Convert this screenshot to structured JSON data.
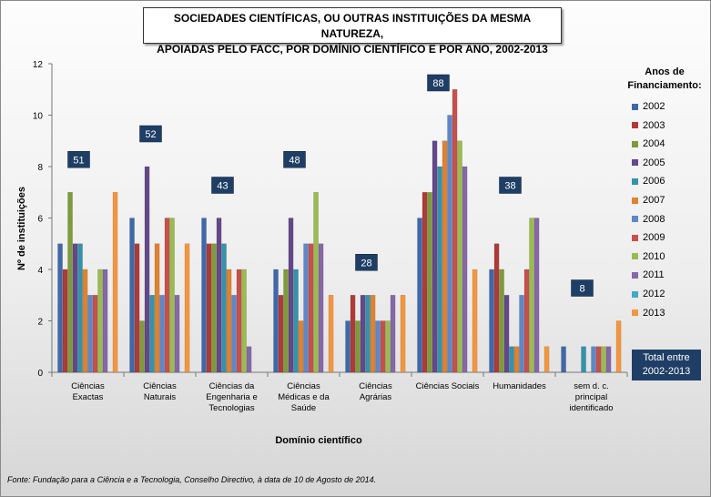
{
  "header": {
    "title_line1": "SOCIEDADES CIENTÍFICAS, OU OUTRAS INSTITUIÇÕES DA MESMA NATUREZA,",
    "title_line2": "APOIADAS PELO FACC, POR DOMÍNIO CIENTÍFICO E POR ANO, 2002-2013"
  },
  "legend": {
    "title": "Anos de Financiamento:",
    "total_label": "Total entre 2002-2013"
  },
  "source": "Fonte: Fundação para a Ciência e a Tecnologia, Conselho Directivo, à data de 10 de Agosto de 2014.",
  "chart_data": {
    "type": "bar",
    "title": "SOCIEDADES CIENTÍFICAS, OU OUTRAS INSTITUIÇÕES DA MESMA NATUREZA, APOIADAS PELO FACC, POR DOMÍNIO CIENTÍFICO E POR ANO, 2002-2013",
    "xlabel": "Domínio científico",
    "ylabel": "Nº de instituições",
    "ylim": [
      0,
      12
    ],
    "yticks": [
      0,
      2,
      4,
      6,
      8,
      10,
      12
    ],
    "grid": false,
    "legend_position": "right",
    "categories": [
      [
        "Ciências",
        "Exactas"
      ],
      [
        "Ciências",
        "Naturais"
      ],
      [
        "Ciências da",
        "Engenharia e",
        "Tecnologias"
      ],
      [
        "Ciências",
        "Médicas e da",
        "Saúde"
      ],
      [
        "Ciências",
        "Agrárias"
      ],
      [
        "Ciências Sociais"
      ],
      [
        "Humanidades"
      ],
      [
        "sem d. c.",
        "principal",
        "identificado"
      ]
    ],
    "totals": [
      51,
      52,
      43,
      48,
      28,
      88,
      38,
      8
    ],
    "series": [
      {
        "name": "2002",
        "color": "#3f68a8",
        "values": [
          5,
          6,
          6,
          4,
          2,
          6,
          4,
          1
        ]
      },
      {
        "name": "2003",
        "color": "#b03a37",
        "values": [
          4,
          5,
          5,
          3,
          3,
          7,
          5,
          0
        ]
      },
      {
        "name": "2004",
        "color": "#7e9a3c",
        "values": [
          7,
          2,
          5,
          4,
          2,
          7,
          4,
          0
        ]
      },
      {
        "name": "2005",
        "color": "#64488a",
        "values": [
          5,
          8,
          6,
          6,
          3,
          9,
          3,
          0
        ]
      },
      {
        "name": "2006",
        "color": "#3592aa",
        "values": [
          5,
          3,
          5,
          4,
          3,
          8,
          1,
          1
        ]
      },
      {
        "name": "2007",
        "color": "#e0822f",
        "values": [
          4,
          5,
          4,
          2,
          3,
          9,
          1,
          0
        ]
      },
      {
        "name": "2008",
        "color": "#5f87c8",
        "values": [
          3,
          3,
          3,
          5,
          2,
          10,
          3,
          1
        ]
      },
      {
        "name": "2009",
        "color": "#c8504c",
        "values": [
          3,
          6,
          4,
          5,
          2,
          11,
          4,
          1
        ]
      },
      {
        "name": "2010",
        "color": "#9bbb4f",
        "values": [
          4,
          6,
          4,
          7,
          2,
          9,
          6,
          1
        ]
      },
      {
        "name": "2011",
        "color": "#8668a8",
        "values": [
          4,
          3,
          1,
          5,
          3,
          8,
          6,
          1
        ]
      },
      {
        "name": "2012",
        "color": "#41a9c4",
        "values": [
          0,
          0,
          0,
          0,
          0,
          0,
          0,
          0
        ]
      },
      {
        "name": "2013",
        "color": "#f5953e",
        "values": [
          7,
          5,
          0,
          3,
          3,
          4,
          1,
          2
        ]
      }
    ]
  }
}
